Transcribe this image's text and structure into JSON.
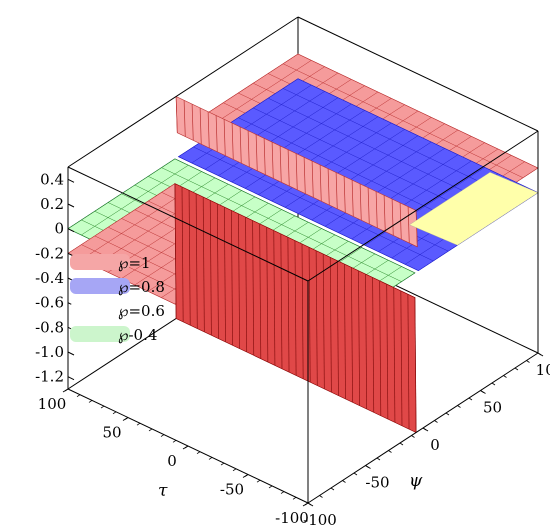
{
  "chart_data": {
    "type": "surface",
    "title": "",
    "x_label": "τ",
    "y_label": "ψ",
    "z_label": "",
    "x_ticks": [
      "-100",
      "-50",
      "0",
      "50",
      "100"
    ],
    "y_ticks": [
      "100",
      "50",
      "0",
      "-50",
      "-100"
    ],
    "z_ticks": [
      "0.4",
      "0.2",
      "0",
      "-0.2",
      "-0.4",
      "-0.6",
      "-0.8",
      "-1.0",
      "-1.2"
    ],
    "x_range": [
      -100,
      100
    ],
    "y_range": [
      -100,
      100
    ],
    "z_range": [
      -1.3,
      0.5
    ],
    "series": [
      {
        "name": "℘=1",
        "color": "#ff7f7f",
        "plateau_low": -0.2,
        "plateau_high": 0.2,
        "spike_min": -1.3,
        "spike_max": 0.5
      },
      {
        "name": "℘=0.8",
        "color": "#6b6bff",
        "plateau_low": 0.0,
        "plateau_high": 0.0,
        "spike_min": -0.2,
        "spike_max": 0.0
      },
      {
        "name": "℘=0.6",
        "color": "#ffffaa",
        "plateau_low": 0.0,
        "plateau_high": 0.0,
        "spike_min": -0.05,
        "spike_max": 0.0
      },
      {
        "name": "℘-0.4",
        "color": "#9cff9c",
        "plateau_low": 0.0,
        "plateau_high": 0.0,
        "spike_min": -0.02,
        "spike_max": 0.0
      }
    ],
    "legend": {
      "position": "left",
      "items": [
        {
          "label": "℘=1",
          "swatch": "#f5a6a6"
        },
        {
          "label": "℘=0.8",
          "swatch": "#a6a6f5"
        },
        {
          "label": "℘=0.6",
          "swatch": "#ffffff"
        },
        {
          "label": "℘-0.4",
          "swatch": "#ccf5cc"
        }
      ]
    },
    "box": true,
    "grid_on_surface": true
  }
}
